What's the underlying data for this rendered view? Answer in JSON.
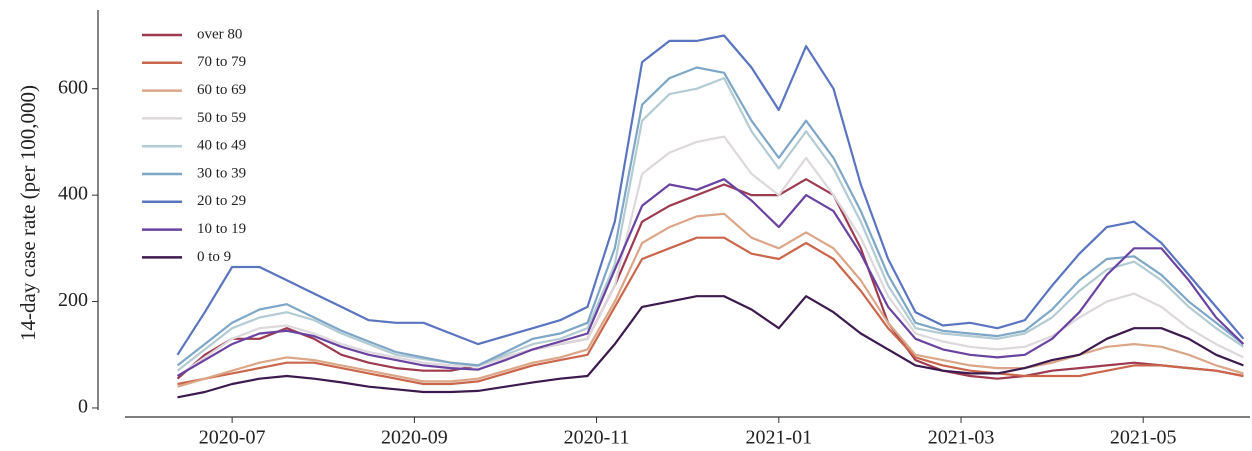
{
  "chart_data": {
    "type": "line",
    "ylabel": "14-day case rate (per 100,000)",
    "x": [
      2020.45,
      2020.475,
      2020.5,
      2020.525,
      2020.55,
      2020.575,
      2020.6,
      2020.625,
      2020.65,
      2020.675,
      2020.7,
      2020.725,
      2020.75,
      2020.775,
      2020.8,
      2020.825,
      2020.85,
      2020.875,
      2020.9,
      2020.925,
      2020.95,
      2020.975,
      2021.0,
      2021.025,
      2021.05,
      2021.075,
      2021.1,
      2021.125,
      2021.15,
      2021.175,
      2021.2,
      2021.225,
      2021.25,
      2021.275,
      2021.3,
      2021.325,
      2021.35,
      2021.375,
      2021.4,
      2021.425
    ],
    "xlim": [
      2020.402,
      2021.431
    ],
    "xticks": [
      {
        "value": 2020.5,
        "label": "2020-07"
      },
      {
        "value": 2020.6667,
        "label": "2020-09"
      },
      {
        "value": 2020.8333,
        "label": "2020-11"
      },
      {
        "value": 2021.0,
        "label": "2021-01"
      },
      {
        "value": 2021.1667,
        "label": "2021-03"
      },
      {
        "value": 2021.3333,
        "label": "2021-05"
      }
    ],
    "ylim": [
      -17,
      748
    ],
    "yticks": [
      0,
      200,
      400,
      600
    ],
    "legend": "upper left",
    "series": [
      {
        "name": "over 80",
        "color": "#9e3a4f",
        "values": [
          55,
          100,
          130,
          130,
          150,
          130,
          100,
          85,
          75,
          70,
          70,
          80,
          95,
          110,
          120,
          130,
          230,
          350,
          380,
          400,
          420,
          400,
          400,
          430,
          400,
          300,
          160,
          90,
          70,
          60,
          55,
          60,
          70,
          75,
          80,
          85,
          80,
          75,
          70,
          60
        ]
      },
      {
        "name": "70 to 79",
        "color": "#c9664b",
        "values": [
          45,
          55,
          65,
          75,
          85,
          85,
          75,
          65,
          55,
          45,
          45,
          50,
          65,
          80,
          90,
          100,
          190,
          280,
          300,
          320,
          320,
          290,
          280,
          310,
          280,
          220,
          150,
          95,
          80,
          70,
          65,
          60,
          60,
          60,
          70,
          80,
          80,
          75,
          70,
          60
        ]
      },
      {
        "name": "60 to 69",
        "color": "#dba688",
        "values": [
          40,
          55,
          70,
          85,
          95,
          90,
          80,
          70,
          60,
          50,
          50,
          55,
          70,
          85,
          95,
          110,
          200,
          310,
          340,
          360,
          365,
          320,
          300,
          330,
          300,
          240,
          160,
          100,
          90,
          80,
          75,
          75,
          85,
          100,
          115,
          120,
          115,
          100,
          80,
          65
        ]
      },
      {
        "name": "50 to 59",
        "color": "#dcd8dc",
        "values": [
          60,
          95,
          130,
          150,
          155,
          140,
          120,
          105,
          95,
          85,
          80,
          78,
          95,
          110,
          120,
          130,
          230,
          440,
          480,
          500,
          510,
          440,
          400,
          470,
          400,
          320,
          210,
          140,
          125,
          115,
          110,
          115,
          135,
          170,
          200,
          215,
          190,
          150,
          120,
          95
        ]
      },
      {
        "name": "40 to 49",
        "color": "#b3cbd2",
        "values": [
          70,
          110,
          150,
          170,
          180,
          165,
          140,
          120,
          100,
          92,
          85,
          80,
          100,
          120,
          130,
          150,
          270,
          540,
          590,
          600,
          620,
          520,
          450,
          520,
          450,
          350,
          230,
          150,
          140,
          135,
          130,
          140,
          170,
          220,
          260,
          275,
          240,
          190,
          150,
          115
        ]
      },
      {
        "name": "30 to 39",
        "color": "#7ea6c7",
        "values": [
          80,
          120,
          160,
          185,
          195,
          170,
          145,
          125,
          105,
          95,
          85,
          80,
          105,
          130,
          140,
          160,
          300,
          570,
          620,
          640,
          630,
          540,
          470,
          540,
          470,
          370,
          250,
          160,
          145,
          140,
          135,
          145,
          185,
          240,
          280,
          285,
          250,
          200,
          160,
          120
        ]
      },
      {
        "name": "20 to 29",
        "color": "#5a74c0",
        "values": [
          100,
          180,
          265,
          265,
          240,
          215,
          190,
          165,
          160,
          160,
          140,
          120,
          135,
          150,
          165,
          190,
          350,
          650,
          690,
          690,
          700,
          640,
          560,
          680,
          600,
          420,
          280,
          180,
          155,
          160,
          150,
          165,
          230,
          290,
          340,
          350,
          310,
          250,
          190,
          130
        ]
      },
      {
        "name": "10 to 19",
        "color": "#6a43a0",
        "values": [
          60,
          90,
          120,
          140,
          145,
          135,
          115,
          100,
          90,
          80,
          75,
          72,
          90,
          110,
          125,
          140,
          260,
          380,
          420,
          410,
          430,
          390,
          340,
          400,
          370,
          290,
          190,
          130,
          110,
          100,
          95,
          100,
          130,
          180,
          250,
          300,
          300,
          240,
          170,
          120
        ]
      },
      {
        "name": "0 to 9",
        "color": "#3c1a4e",
        "values": [
          20,
          30,
          45,
          55,
          60,
          55,
          48,
          40,
          35,
          30,
          30,
          32,
          40,
          48,
          55,
          60,
          120,
          190,
          200,
          210,
          210,
          185,
          150,
          210,
          180,
          140,
          110,
          80,
          70,
          65,
          65,
          75,
          90,
          100,
          130,
          150,
          150,
          130,
          100,
          80
        ]
      }
    ]
  }
}
